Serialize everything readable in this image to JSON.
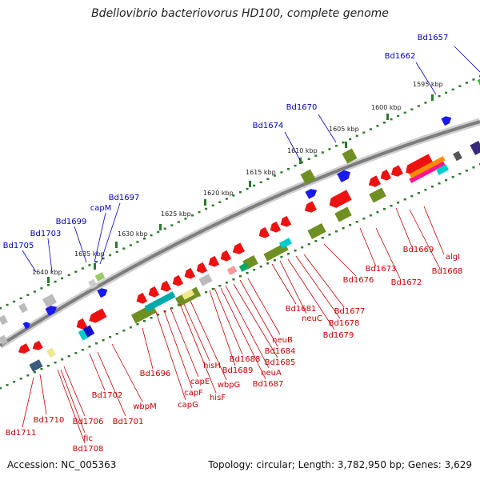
{
  "title": "Bdellovibrio bacteriovorus HD100, complete genome",
  "footer": {
    "accession": "Accession: NC_005363",
    "topology": "Topology: circular; Length: 3,782,950 bp; Genes: 3,629"
  },
  "colors": {
    "forward_gene_label": "#0000cc",
    "reverse_gene_label": "#cc0000",
    "backbone": "#888888",
    "tick": "#2a7a2a"
  },
  "ruler_labels": [
    "1595 kbp",
    "1600 kbp",
    "1605 kbp",
    "1610 kbp",
    "1615 kbp",
    "1620 kbp",
    "1625 kbp",
    "1630 kbp",
    "1635 kbp",
    "1640 kbp"
  ],
  "forward_gene_labels": [
    "Bd1657",
    "Bd1662",
    "Bd1670",
    "Bd1674",
    "Bd1697",
    "capM",
    "Bd1699",
    "Bd1703",
    "Bd1705"
  ],
  "reverse_gene_labels": [
    "algI",
    "Bd1668",
    "Bd1669",
    "Bd1672",
    "Bd1673",
    "Bd1676",
    "Bd1677",
    "Bd1678",
    "Bd1679",
    "Bd1681",
    "neuC",
    "neuB",
    "Bd1684",
    "Bd1685",
    "Bd1688",
    "Bd1689",
    "neuA",
    "Bd1687",
    "hisH",
    "wbpG",
    "hisF",
    "capE",
    "capF",
    "capG",
    "Bd1696",
    "wbpM",
    "Bd1702",
    "Bd1701",
    "Bd1706",
    "fic",
    "Bd1708",
    "Bd1710",
    "Bd1711"
  ]
}
